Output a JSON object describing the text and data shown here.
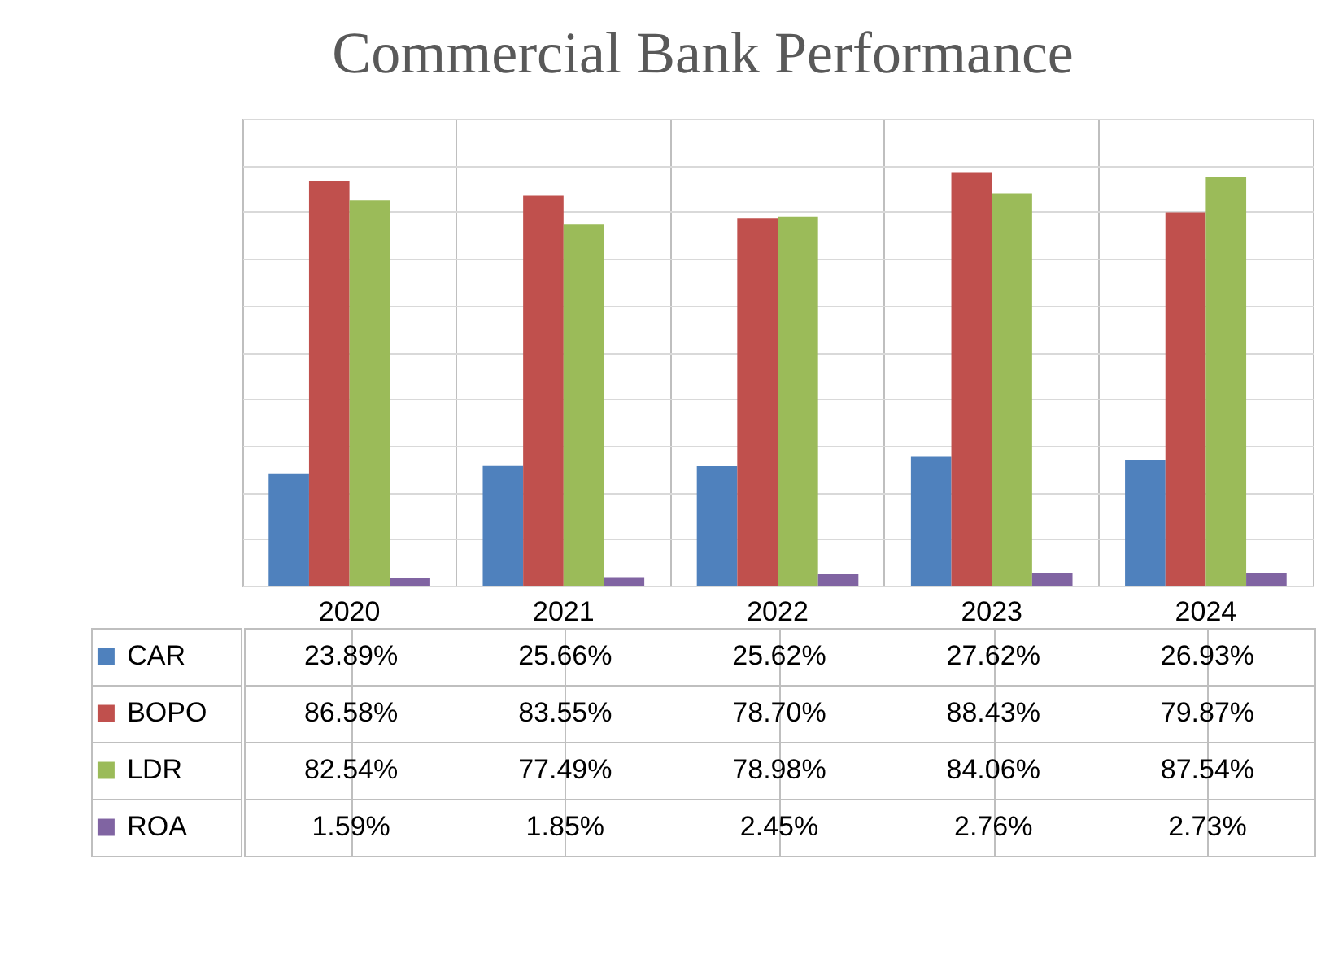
{
  "chart_data": {
    "type": "bar",
    "title": "Commercial Bank Performance",
    "categories": [
      "2020",
      "2021",
      "2022",
      "2023",
      "2024"
    ],
    "series": [
      {
        "name": "CAR",
        "color": "#4f81bd",
        "values": [
          23.89,
          25.66,
          25.62,
          27.62,
          26.93
        ],
        "value_labels": [
          "23.89%",
          "25.66%",
          "25.62%",
          "27.62%",
          "26.93%"
        ]
      },
      {
        "name": "BOPO",
        "color": "#c0504d",
        "values": [
          86.58,
          83.55,
          78.7,
          88.43,
          79.87
        ],
        "value_labels": [
          "86.58%",
          "83.55%",
          "78.70%",
          "88.43%",
          "79.87%"
        ]
      },
      {
        "name": "LDR",
        "color": "#9bbb59",
        "values": [
          82.54,
          77.49,
          78.98,
          84.06,
          87.54
        ],
        "value_labels": [
          "82.54%",
          "77.49%",
          "78.98%",
          "84.06%",
          "87.54%"
        ]
      },
      {
        "name": "ROA",
        "color": "#8064a2",
        "values": [
          1.59,
          1.85,
          2.45,
          2.76,
          2.73
        ],
        "value_labels": [
          "1.59%",
          "1.85%",
          "2.45%",
          "2.76%",
          "2.73%"
        ]
      }
    ],
    "ylim": [
      0,
      100
    ],
    "yticks": [
      {
        "value": 0,
        "label": null
      },
      {
        "value": 10,
        "label": null
      },
      {
        "value": 20,
        "label": null
      },
      {
        "value": 30,
        "label": null
      },
      {
        "value": 40,
        "label": null
      },
      {
        "value": 50,
        "label": null
      },
      {
        "value": 60,
        "label": null
      },
      {
        "value": 70,
        "label": null
      },
      {
        "value": 80,
        "label": null
      },
      {
        "value": 90,
        "label": null
      },
      {
        "value": 100,
        "label": null
      }
    ],
    "grid": "y",
    "tick_labels": "x",
    "legend": "bottom left",
    "data_labels": true
  }
}
